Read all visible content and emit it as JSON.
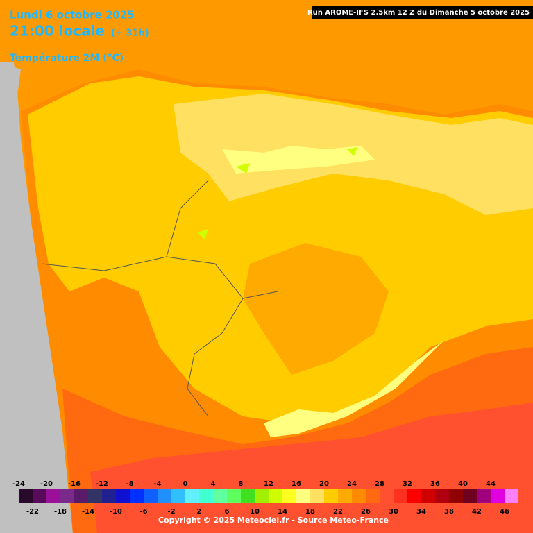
{
  "header": {
    "date": "Lundi 6 octobre 2025",
    "time": "21:00 locale",
    "offset": "(+ 31h)",
    "field": "Température 2M (°C)",
    "run": "Run AROME-IFS 2.5km 12 Z du Dimanche 5 octobre 2025"
  },
  "legend": {
    "upper_labels": [
      -24,
      -20,
      -16,
      -12,
      -8,
      -4,
      0,
      4,
      8,
      12,
      16,
      20,
      24,
      28,
      32,
      36,
      40,
      44
    ],
    "lower_labels": [
      -22,
      -18,
      -14,
      -10,
      -6,
      -2,
      2,
      6,
      10,
      14,
      18,
      22,
      26,
      30,
      34,
      38,
      42,
      46
    ],
    "colors": [
      "#2a0a2a",
      "#5a0a5a",
      "#9a109a",
      "#7a2a8a",
      "#5a1a6a",
      "#333366",
      "#202090",
      "#1010d0",
      "#0030ff",
      "#1060ff",
      "#2090ff",
      "#30c0ff",
      "#60f0ff",
      "#40ffd0",
      "#60ffa0",
      "#60ff60",
      "#40e020",
      "#a0f000",
      "#d0ff00",
      "#ffff20",
      "#ffff80",
      "#ffe060",
      "#ffcc00",
      "#ffaa00",
      "#ff8c00",
      "#ff6a10",
      "#ff5030",
      "#ff3020",
      "#ff0000",
      "#d00000",
      "#b00010",
      "#900000",
      "#700020",
      "#a00080",
      "#e000e0",
      "#ff80ff"
    ]
  },
  "footer": {
    "copyright": "Copyright © 2025 Meteociel.fr - Source Meteo-France"
  }
}
